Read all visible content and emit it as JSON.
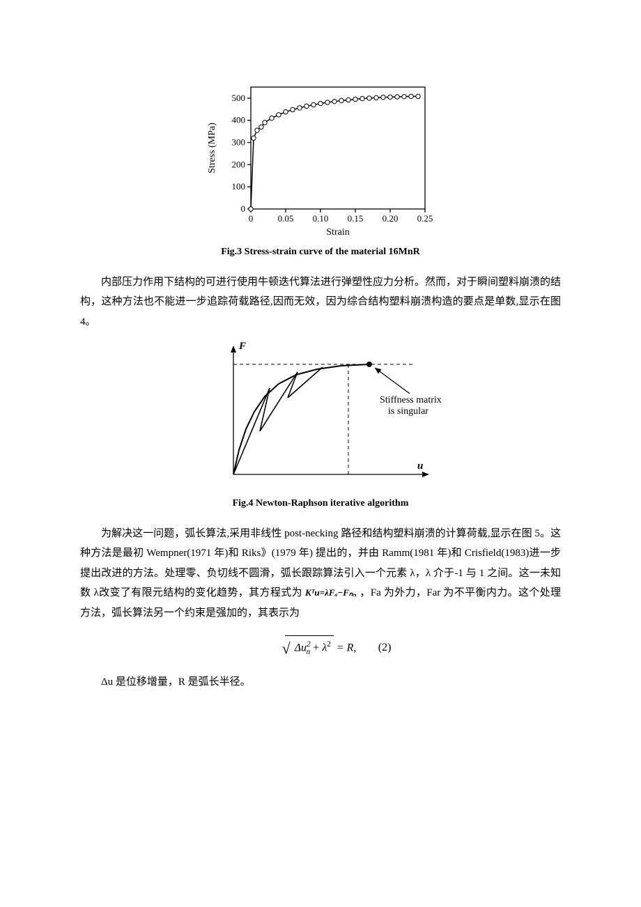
{
  "fig3": {
    "caption": "Fig.3  Stress-strain curve of the material 16MnR",
    "xlabel": "Strain",
    "ylabel": "Stress (MPa)",
    "xticks": [
      0,
      0.05,
      0.1,
      0.15,
      0.2,
      0.25
    ],
    "xtick_labels": [
      "0",
      "0.05",
      "0.10",
      "0.15",
      "0.20",
      "0.25"
    ],
    "yticks": [
      0,
      100,
      200,
      300,
      400,
      500
    ],
    "ytick_labels": [
      "0",
      "100",
      "200",
      "300",
      "400",
      "500"
    ],
    "xlim": [
      0,
      0.25
    ],
    "ylim": [
      0,
      550
    ],
    "data": [
      [
        0.0,
        0
      ],
      [
        0.004,
        320
      ],
      [
        0.009,
        355
      ],
      [
        0.015,
        370
      ],
      [
        0.02,
        390
      ],
      [
        0.03,
        410
      ],
      [
        0.04,
        425
      ],
      [
        0.05,
        438
      ],
      [
        0.06,
        448
      ],
      [
        0.07,
        456
      ],
      [
        0.08,
        464
      ],
      [
        0.09,
        470
      ],
      [
        0.1,
        476
      ],
      [
        0.11,
        481
      ],
      [
        0.12,
        485
      ],
      [
        0.13,
        489
      ],
      [
        0.14,
        492
      ],
      [
        0.15,
        495
      ],
      [
        0.16,
        498
      ],
      [
        0.17,
        500
      ],
      [
        0.18,
        502
      ],
      [
        0.19,
        504
      ],
      [
        0.2,
        505
      ],
      [
        0.21,
        506
      ],
      [
        0.22,
        507
      ],
      [
        0.23,
        508
      ],
      [
        0.24,
        508
      ]
    ],
    "line_color": "#000000",
    "marker_color": "#ffffff",
    "marker_stroke": "#000000",
    "marker_size": 3.2,
    "axis_width": 1.3,
    "tick_len": 5,
    "font_size_tick": 13,
    "font_size_label": 14
  },
  "para1": "内部压力作用下结构的可进行使用牛顿迭代算法进行弹塑性应力分析。然而，对于瞬间塑料崩溃的结构，这种方法也不能进一步追踪荷载路径,因而无效，因为综合结构塑料崩溃构造的要点是单数,显示在图 4。",
  "fig4": {
    "caption": "Fig.4  Newton-Raphson iterative algorithm",
    "ylabel": "F",
    "xlabel": "u",
    "annotation_l1": "Stiffness matrix",
    "annotation_l2": "is singular",
    "line_color": "#000000",
    "axis_width": 1.3,
    "curve": [
      [
        0,
        0
      ],
      [
        8,
        35
      ],
      [
        18,
        65
      ],
      [
        30,
        90
      ],
      [
        45,
        112
      ],
      [
        65,
        130
      ],
      [
        90,
        143
      ],
      [
        120,
        151
      ],
      [
        155,
        156
      ],
      [
        195,
        158
      ]
    ],
    "seg1": [
      [
        0,
        0
      ],
      [
        52,
        124
      ]
    ],
    "seg1b": [
      [
        52,
        124
      ],
      [
        38,
        62
      ]
    ],
    "seg2": [
      [
        38,
        62
      ],
      [
        92,
        147
      ]
    ],
    "seg2b": [
      [
        92,
        147
      ],
      [
        78,
        110
      ]
    ],
    "seg3": [
      [
        78,
        110
      ],
      [
        128,
        154
      ]
    ],
    "dash_y": 158,
    "dash_x": 165,
    "peak": [
      195,
      158
    ],
    "arrow_from": [
      253,
      116
    ],
    "arrow_to": [
      203,
      153
    ]
  },
  "para2a": "为解决这一问题，弧长算法,采用非线性 post-necking 路径和结构塑料崩溃的计算荷载,显示在图 5。这种方法是最初 Wempner(1971 年)和 Riks》(1979 年) 提出的，并由 Ramm(1981 年)和 Crisfield(1983)进一步提出改进的方法。处理零、负切线不圆滑，弧长跟踪算法引入一个元素 λ，λ 介于-1 与 1 之间。这一未知数 λ改变了有限元结构的变化趋势，其方程式为",
  "inline_eq": "Kᵀu=λFₐ−Fₙᵣ,",
  "para2b": "，Fa 为外力，Far 为不平衡内力。这个处理方法，弧长算法另一个约束是强加的，其表示为",
  "eq2_inner": "Δu²ₙ + λ²",
  "eq2_rhs": " = R,",
  "eq2_num": "(2)",
  "para3": "Δu 是位移增量，R 是弧长半径。",
  "colors": {
    "text": "#000000",
    "bg": "#ffffff"
  }
}
